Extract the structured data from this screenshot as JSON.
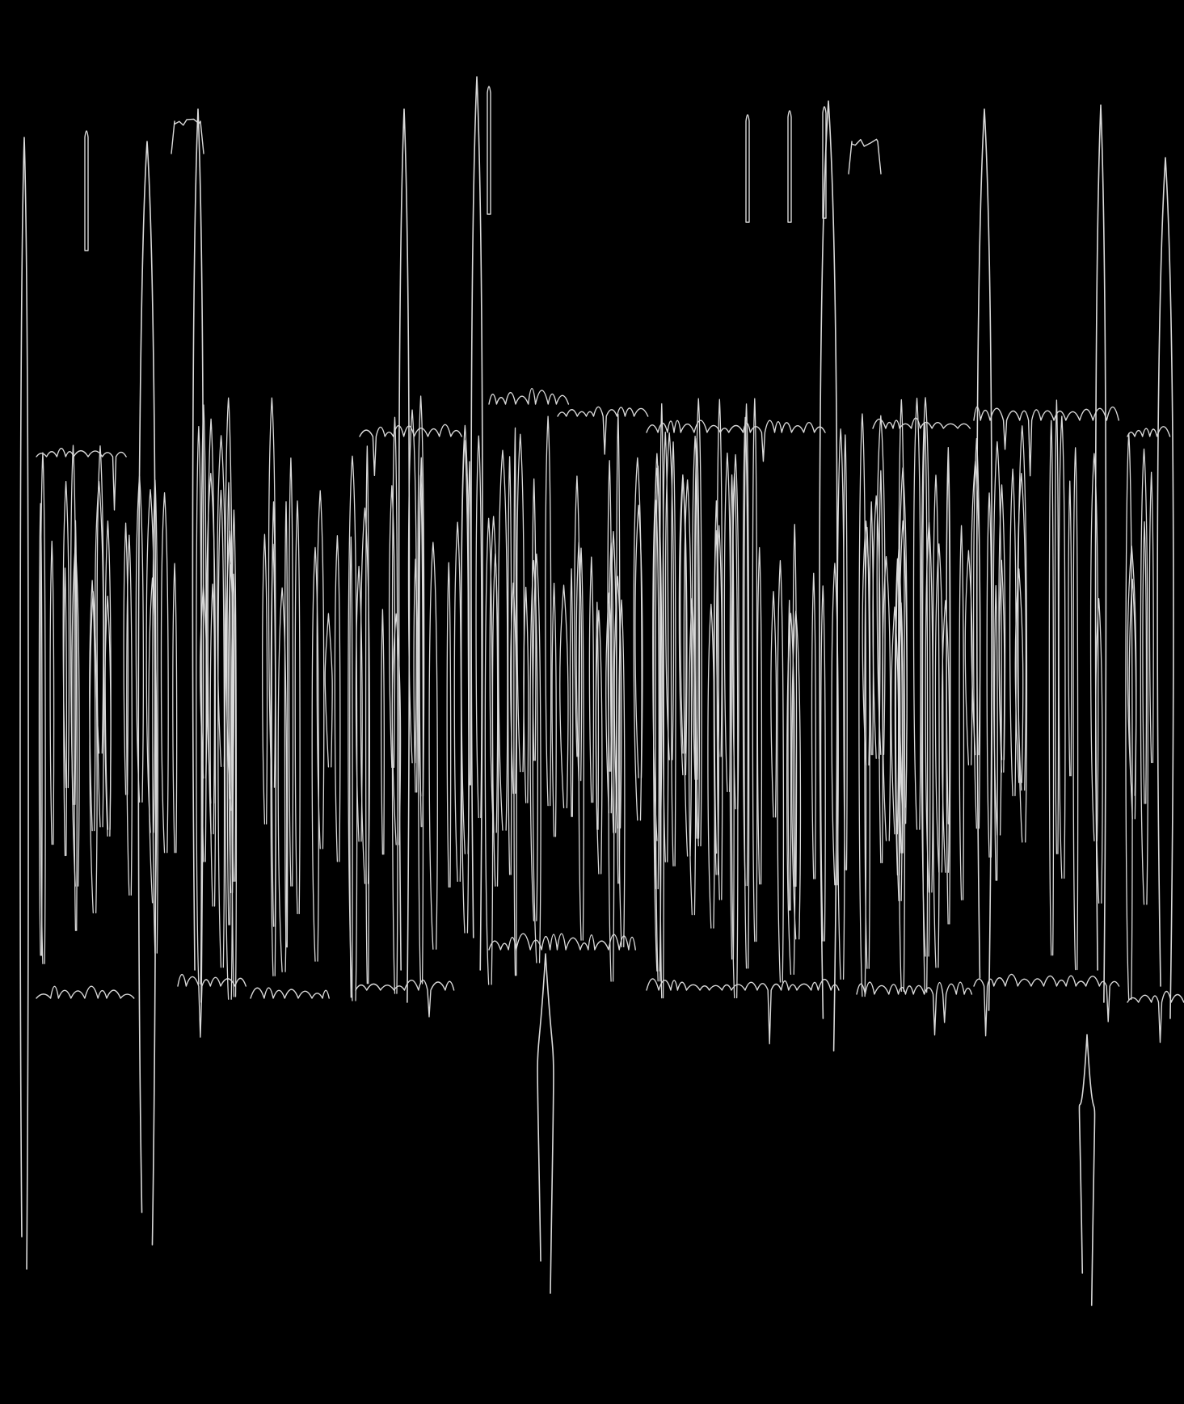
{
  "image": {
    "background_color": "#000000",
    "line_color": "#d9d9d9",
    "description_kind": "line-art",
    "visible_text": []
  }
}
